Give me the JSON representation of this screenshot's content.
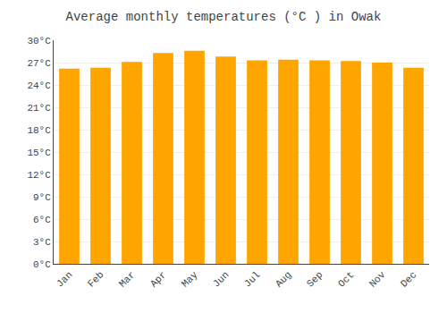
{
  "chart_data": {
    "type": "bar",
    "title": "Average monthly temperatures (°C ) in Owak",
    "categories": [
      "Jan",
      "Feb",
      "Mar",
      "Apr",
      "May",
      "Jun",
      "Jul",
      "Aug",
      "Sep",
      "Oct",
      "Nov",
      "Dec"
    ],
    "values": [
      26.2,
      26.3,
      27.1,
      28.3,
      28.6,
      27.8,
      27.3,
      27.4,
      27.3,
      27.2,
      27.0,
      26.3
    ],
    "color": "#FFA500",
    "ylim": [
      0,
      30
    ],
    "yticks": [
      {
        "value": 0,
        "label": "0°C"
      },
      {
        "value": 3,
        "label": "3°C"
      },
      {
        "value": 6,
        "label": "6°C"
      },
      {
        "value": 9,
        "label": "9°C"
      },
      {
        "value": 12,
        "label": "12°C"
      },
      {
        "value": 15,
        "label": "15°C"
      },
      {
        "value": 18,
        "label": "18°C"
      },
      {
        "value": 21,
        "label": "21°C"
      },
      {
        "value": 24,
        "label": "24°C"
      },
      {
        "value": 27,
        "label": "27°C"
      },
      {
        "value": 30,
        "label": "30°C"
      }
    ],
    "grid": true
  }
}
